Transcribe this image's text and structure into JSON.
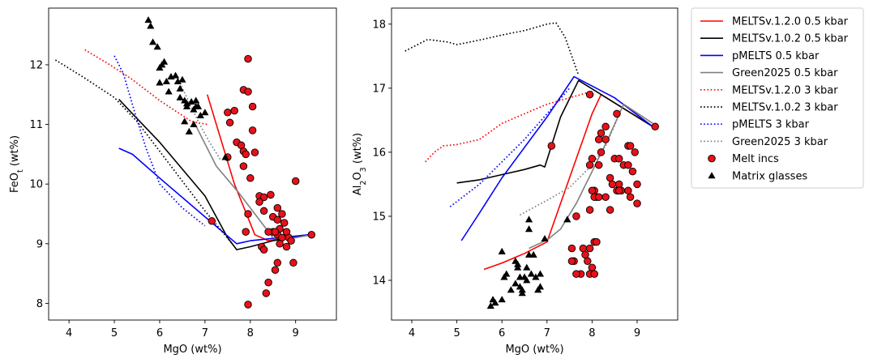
{
  "chart_data": [
    {
      "type": "line",
      "xlabel": "MgO (wt%)",
      "ylabel_base": "FeO",
      "ylabel_sub": "t",
      "ylabel_suffix": " (wt%)",
      "xlim": [
        3.55,
        9.9
      ],
      "ylim": [
        7.72,
        12.95
      ],
      "xticks": [
        4,
        5,
        6,
        7,
        8,
        9
      ],
      "yticks": [
        8,
        9,
        10,
        11,
        12
      ],
      "series": [
        {
          "name": "MELTSv.1.2.0 0.5 kbar",
          "color": "#ff0000",
          "style": "solid",
          "x": [
            7.05,
            7.65,
            8.1,
            8.4,
            8.8,
            9.3
          ],
          "y": [
            11.5,
            10.0,
            9.15,
            9.05,
            9.1,
            9.15
          ]
        },
        {
          "name": "MELTSv.1.0.2 0.5 kbar",
          "color": "#000000",
          "style": "solid",
          "x": [
            5.1,
            5.35,
            6.0,
            7.0,
            7.5,
            7.7,
            8.0,
            8.5,
            9.3
          ],
          "y": [
            11.42,
            11.22,
            10.7,
            9.8,
            9.1,
            8.9,
            8.95,
            9.05,
            9.15
          ]
        },
        {
          "name": "pMELTS 0.5 kbar",
          "color": "#0000ff",
          "style": "solid",
          "x": [
            5.1,
            5.4,
            6.0,
            7.0,
            7.7,
            8.0,
            9.3
          ],
          "y": [
            10.6,
            10.5,
            10.1,
            9.45,
            9.0,
            9.05,
            9.15
          ]
        },
        {
          "name": "Green2025 0.5 kbar",
          "color": "#808080",
          "style": "solid",
          "x": [
            6.75,
            7.25,
            7.75,
            8.1,
            8.5,
            9.0,
            9.35
          ],
          "y": [
            11.05,
            10.3,
            9.85,
            9.5,
            9.1,
            9.1,
            9.15
          ]
        },
        {
          "name": "MELTSv.1.2.0 3 kbar",
          "color": "#ff0000",
          "style": "dotted",
          "x": [
            4.35,
            4.9,
            5.4,
            6.0,
            6.7,
            7.05
          ],
          "y": [
            12.25,
            12.0,
            11.75,
            11.4,
            11.05,
            11.0
          ]
        },
        {
          "name": "MELTSv.1.0.2 3 kbar",
          "color": "#000000",
          "style": "dotted",
          "x": [
            3.7,
            4.3,
            5.0,
            5.5,
            6.0,
            6.5,
            7.0,
            7.6
          ],
          "y": [
            12.08,
            11.8,
            11.45,
            11.05,
            10.55,
            10.05,
            9.55,
            9.0
          ]
        },
        {
          "name": "pMELTS 3 kbar",
          "color": "#0000ff",
          "style": "dotted",
          "x": [
            5.0,
            5.2,
            5.45,
            5.7,
            6.0,
            6.5,
            7.0
          ],
          "y": [
            12.15,
            11.85,
            11.2,
            10.6,
            10.0,
            9.6,
            9.3
          ]
        },
        {
          "name": "Green2025 3 kbar",
          "color": "#808080",
          "style": "dotted",
          "x": [
            6.35,
            6.6,
            6.85,
            7.1,
            7.35
          ],
          "y": [
            11.85,
            11.45,
            11.05,
            10.7,
            10.4
          ]
        },
        {
          "name": "Melt incs",
          "color": "#e8111a",
          "marker": "circle",
          "x": [
            7.95,
            7.85,
            7.95,
            8.05,
            7.5,
            7.55,
            7.65,
            7.5,
            8.05,
            7.7,
            7.8,
            7.85,
            7.9,
            8.1,
            7.85,
            8.0,
            7.95,
            7.15,
            8.2,
            8.3,
            8.2,
            8.45,
            8.3,
            8.6,
            8.7,
            8.5,
            8.6,
            8.75,
            8.65,
            8.8,
            8.5,
            8.6,
            8.7,
            8.85,
            8.9,
            8.25,
            8.3,
            8.4,
            8.55,
            8.65,
            8.8,
            8.95,
            9.0,
            9.35,
            8.6,
            8.55,
            8.4,
            8.35,
            7.95,
            7.9
          ],
          "y": [
            12.1,
            11.58,
            11.55,
            11.3,
            11.2,
            11.03,
            11.23,
            10.45,
            10.9,
            10.7,
            10.65,
            10.55,
            10.5,
            10.53,
            10.3,
            10.1,
            9.5,
            9.38,
            9.8,
            9.78,
            9.7,
            9.82,
            9.55,
            9.6,
            9.5,
            9.45,
            9.4,
            9.35,
            9.25,
            9.2,
            9.2,
            9.15,
            9.1,
            9.1,
            9.05,
            8.95,
            8.9,
            9.2,
            9.2,
            9.0,
            8.95,
            8.68,
            10.05,
            9.15,
            8.68,
            8.56,
            8.35,
            8.17,
            7.98,
            9.2
          ]
        },
        {
          "name": "Matrix glasses",
          "color": "#000000",
          "marker": "triangle",
          "x": [
            5.75,
            5.8,
            5.85,
            5.95,
            6.0,
            6.1,
            6.05,
            6.15,
            6.25,
            6.2,
            6.35,
            6.4,
            6.45,
            6.5,
            6.45,
            6.55,
            6.6,
            6.7,
            6.75,
            6.8,
            6.85,
            6.9,
            7.0,
            6.55,
            6.65,
            6.75,
            6.6,
            6.8,
            7.45,
            6.0
          ],
          "y": [
            12.75,
            12.65,
            12.38,
            12.3,
            11.95,
            12.05,
            12.0,
            11.72,
            11.8,
            11.55,
            11.82,
            11.72,
            11.6,
            11.75,
            11.45,
            11.4,
            11.3,
            11.38,
            11.25,
            11.4,
            11.3,
            11.15,
            11.2,
            11.05,
            10.88,
            11.0,
            11.35,
            11.3,
            10.45,
            11.7
          ]
        }
      ]
    },
    {
      "type": "line",
      "xlabel": "MgO (wt%)",
      "ylabel_base": "Al",
      "ylabel_sub1": "2",
      "ylabel_mid": "O",
      "ylabel_sub2": "3",
      "ylabel_suffix": " (wt%)",
      "xlim": [
        3.55,
        9.9
      ],
      "ylim": [
        13.38,
        18.25
      ],
      "xticks": [
        4,
        5,
        6,
        7,
        8,
        9
      ],
      "yticks": [
        14,
        15,
        16,
        17,
        18
      ],
      "series": [
        {
          "name": "MELTSv.1.2.0 0.5 kbar",
          "color": "#ff0000",
          "style": "solid",
          "x": [
            5.6,
            6.0,
            6.5,
            7.0,
            7.5,
            8.0,
            8.2,
            9.35
          ],
          "y": [
            14.17,
            14.27,
            14.42,
            14.6,
            15.6,
            16.6,
            16.9,
            16.4
          ]
        },
        {
          "name": "MELTSv.1.0.2 0.5 kbar",
          "color": "#000000",
          "style": "solid",
          "x": [
            5.0,
            5.5,
            6.0,
            6.5,
            6.85,
            6.95,
            7.3,
            7.7,
            9.35
          ],
          "y": [
            15.52,
            15.57,
            15.65,
            15.73,
            15.8,
            15.77,
            16.55,
            17.12,
            16.4
          ]
        },
        {
          "name": "pMELTS 0.5 kbar",
          "color": "#0000ff",
          "style": "solid",
          "x": [
            5.1,
            5.5,
            6.0,
            7.0,
            7.6,
            8.5,
            9.35
          ],
          "y": [
            14.62,
            15.05,
            15.6,
            16.55,
            17.18,
            16.85,
            16.4
          ]
        },
        {
          "name": "Green2025 0.5 kbar",
          "color": "#808080",
          "style": "solid",
          "x": [
            6.6,
            7.0,
            7.3,
            7.65,
            8.0,
            8.35,
            8.7,
            9.35
          ],
          "y": [
            14.5,
            14.63,
            14.8,
            15.2,
            15.7,
            16.2,
            16.75,
            16.45
          ]
        },
        {
          "name": "MELTSv.1.2.0 3 kbar",
          "color": "#ff0000",
          "style": "dotted",
          "x": [
            4.3,
            4.5,
            4.7,
            5.0,
            5.5,
            6.0,
            6.5,
            7.0,
            7.5,
            8.0
          ],
          "y": [
            15.85,
            16.0,
            16.1,
            16.12,
            16.2,
            16.45,
            16.6,
            16.75,
            16.85,
            16.95
          ]
        },
        {
          "name": "MELTSv.1.0.2 3 kbar",
          "color": "#000000",
          "style": "dotted",
          "x": [
            3.85,
            4.35,
            4.8,
            5.0,
            5.5,
            6.0,
            6.5,
            7.0,
            7.2,
            7.4,
            7.7
          ],
          "y": [
            17.58,
            17.76,
            17.72,
            17.68,
            17.75,
            17.83,
            17.9,
            18.0,
            18.02,
            17.8,
            17.2
          ]
        },
        {
          "name": "pMELTS 3 kbar",
          "color": "#0000ff",
          "style": "dotted",
          "x": [
            4.85,
            5.5,
            6.0,
            6.5,
            7.0,
            7.5
          ],
          "y": [
            15.15,
            15.5,
            15.85,
            16.2,
            16.6,
            17.0
          ]
        },
        {
          "name": "Green2025 3 kbar",
          "color": "#808080",
          "style": "dotted",
          "x": [
            6.4,
            7.0,
            7.5,
            8.0,
            8.3,
            8.55
          ],
          "y": [
            15.02,
            15.25,
            15.45,
            15.8,
            16.1,
            16.5
          ]
        },
        {
          "name": "Melt incs",
          "color": "#e8111a",
          "marker": "circle",
          "x": [
            7.1,
            7.95,
            8.15,
            8.2,
            8.3,
            8.55,
            8.8,
            8.85,
            8.5,
            8.6,
            7.95,
            8.0,
            8.05,
            8.1,
            8.15,
            8.3,
            8.4,
            8.45,
            8.55,
            8.7,
            8.8,
            8.9,
            8.95,
            9.0,
            8.6,
            8.65,
            8.8,
            8.85,
            9.0,
            8.2,
            8.3,
            7.95,
            8.0,
            8.05,
            8.15,
            7.55,
            7.6,
            7.65,
            7.8,
            7.85,
            7.9,
            7.95,
            8.0,
            8.05,
            8.1,
            7.55,
            7.75,
            7.95,
            8.05,
            7.65,
            8.4,
            8.6,
            9.4
          ],
          "y": [
            16.1,
            16.9,
            16.2,
            16.3,
            16.4,
            16.6,
            16.1,
            16.1,
            15.9,
            15.9,
            15.8,
            15.9,
            15.4,
            15.3,
            15.8,
            15.3,
            15.6,
            15.5,
            15.4,
            15.8,
            15.8,
            15.7,
            16.0,
            15.5,
            15.5,
            15.4,
            15.4,
            15.3,
            15.2,
            16.0,
            16.2,
            15.1,
            15.4,
            15.3,
            15.3,
            14.5,
            14.3,
            15.0,
            14.5,
            14.4,
            14.3,
            14.5,
            14.2,
            14.6,
            14.6,
            14.3,
            14.1,
            14.1,
            14.1,
            14.1,
            15.1,
            15.4,
            16.4
          ]
        },
        {
          "name": "Matrix glasses",
          "color": "#000000",
          "marker": "triangle",
          "x": [
            5.75,
            5.8,
            5.85,
            6.0,
            6.05,
            6.1,
            6.2,
            6.3,
            6.35,
            6.4,
            6.45,
            6.5,
            6.55,
            6.6,
            6.35,
            6.4,
            6.45,
            6.6,
            6.65,
            6.75,
            6.8,
            6.85,
            6.55,
            6.6,
            6.7,
            6.85,
            6.95,
            7.45,
            6.0,
            6.3
          ],
          "y": [
            13.6,
            13.7,
            13.65,
            13.7,
            14.05,
            14.1,
            13.85,
            13.95,
            14.25,
            13.9,
            13.85,
            14.05,
            14.0,
            14.95,
            14.2,
            14.05,
            13.8,
            14.4,
            14.1,
            14.05,
            13.85,
            14.1,
            14.2,
            14.8,
            14.4,
            13.9,
            14.65,
            14.95,
            14.45,
            14.3
          ]
        }
      ]
    }
  ],
  "legend": {
    "items": [
      {
        "label": "MELTSv.1.2.0 0.5 kbar",
        "color": "#ff0000",
        "kind": "line",
        "style": "solid"
      },
      {
        "label": "MELTSv.1.0.2 0.5 kbar",
        "color": "#000000",
        "kind": "line",
        "style": "solid"
      },
      {
        "label": "pMELTS 0.5 kbar",
        "color": "#0000ff",
        "kind": "line",
        "style": "solid"
      },
      {
        "label": "Green2025 0.5 kbar",
        "color": "#808080",
        "kind": "line",
        "style": "solid"
      },
      {
        "label": "MELTSv.1.2.0 3 kbar",
        "color": "#ff0000",
        "kind": "line",
        "style": "dotted"
      },
      {
        "label": "MELTSv.1.0.2 3 kbar",
        "color": "#000000",
        "kind": "line",
        "style": "dotted"
      },
      {
        "label": "pMELTS 3 kbar",
        "color": "#0000ff",
        "kind": "line",
        "style": "dotted"
      },
      {
        "label": "Green2025 3 kbar",
        "color": "#808080",
        "kind": "line",
        "style": "dotted"
      },
      {
        "label": "Melt incs",
        "color": "#e8111a",
        "kind": "circle"
      },
      {
        "label": "Matrix glasses",
        "color": "#000000",
        "kind": "triangle"
      }
    ]
  }
}
